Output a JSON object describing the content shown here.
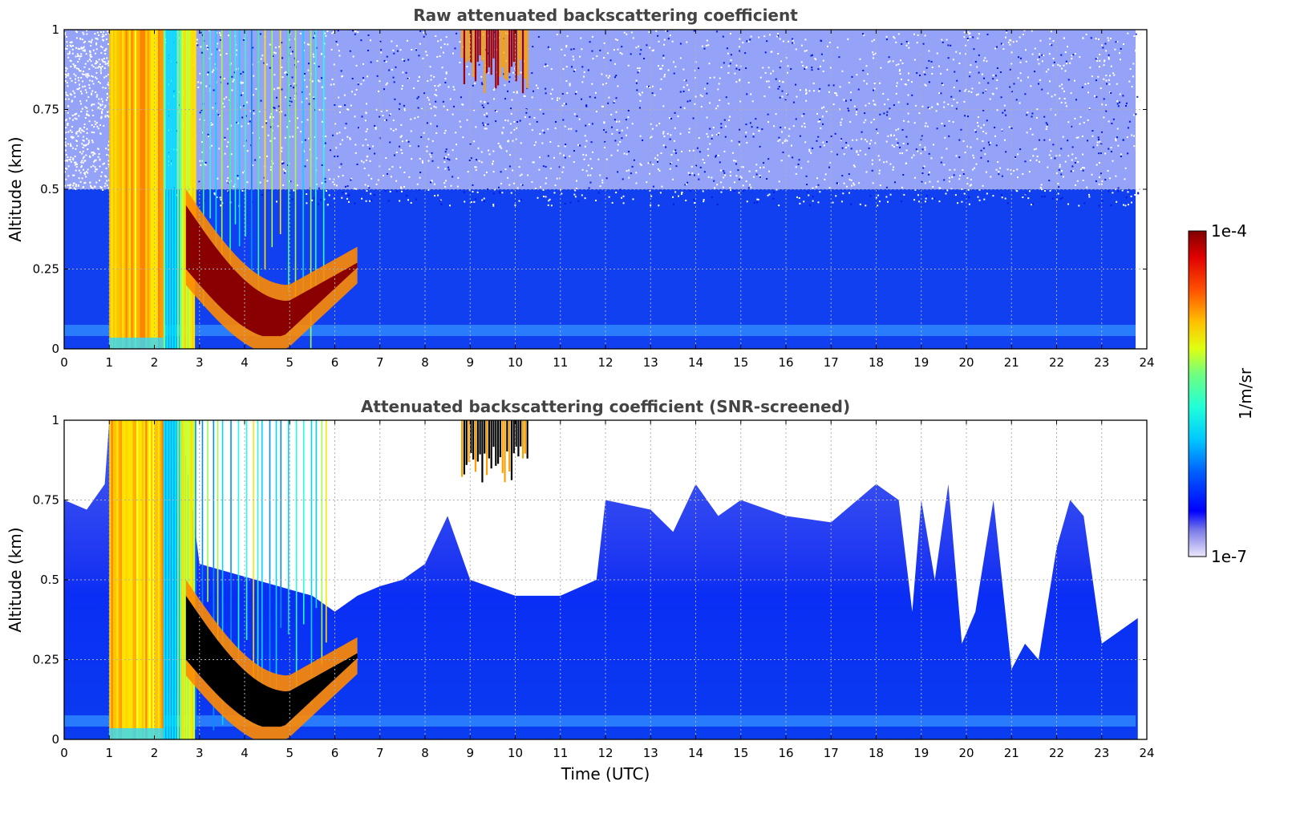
{
  "chart_data": [
    {
      "type": "heatmap",
      "title": "Raw attenuated backscattering coefficient",
      "xlabel": "",
      "ylabel": "Altitude (km)",
      "xlim": [
        0,
        24
      ],
      "ylim": [
        0,
        1
      ],
      "x_ticks": [
        "0",
        "1",
        "2",
        "3",
        "4",
        "5",
        "6",
        "7",
        "8",
        "9",
        "10",
        "11",
        "12",
        "13",
        "14",
        "15",
        "16",
        "17",
        "18",
        "19",
        "20",
        "21",
        "22",
        "23",
        "24"
      ],
      "y_ticks": [
        "0",
        "0.25",
        "0.5",
        "0.75",
        "1"
      ],
      "grid": true,
      "color_scale": "jet, logarithmic",
      "data_end_hour": 23.8,
      "features": [
        {
          "kind": "high-backscatter vertical bands (full column)",
          "x_range": [
            1.0,
            2.2
          ],
          "level": "~1e-5 (yellow/orange)"
        },
        {
          "kind": "high-backscatter vertical bands",
          "x_range": [
            2.6,
            2.8
          ],
          "level": "~5e-6 (yellow)"
        },
        {
          "kind": "intermittent streaks",
          "x_range": [
            2.8,
            5.8
          ]
        },
        {
          "kind": "dense layer (dark red)",
          "x_range": [
            2.7,
            6.5
          ],
          "altitude_km": [
            0.05,
            0.45
          ],
          "level": "~1e-4"
        },
        {
          "kind": "elevated cloud (dark red)",
          "x_range": [
            8.8,
            10.3
          ],
          "altitude_km": [
            0.8,
            1.0
          ]
        },
        {
          "kind": "noisy background",
          "x_range": [
            6,
            23.8
          ],
          "altitude_km": [
            0.0,
            1.0
          ],
          "level": "~1e-7 to 1e-6 (blue)"
        }
      ]
    },
    {
      "type": "heatmap",
      "title": "Attenuated backscattering coefficient (SNR-screened)",
      "xlabel": "Time (UTC)",
      "ylabel": "Altitude (km)",
      "xlim": [
        0,
        24
      ],
      "ylim": [
        0,
        1
      ],
      "x_ticks": [
        "0",
        "1",
        "2",
        "3",
        "4",
        "5",
        "6",
        "7",
        "8",
        "9",
        "10",
        "11",
        "12",
        "13",
        "14",
        "15",
        "16",
        "17",
        "18",
        "19",
        "20",
        "21",
        "22",
        "23",
        "24"
      ],
      "y_ticks": [
        "0",
        "0.25",
        "0.5",
        "0.75",
        "1"
      ],
      "grid": true,
      "color_scale": "jet, logarithmic",
      "data_end_hour": 23.8,
      "valid_data_top_km": {
        "x": [
          0.0,
          0.5,
          0.9,
          1.0,
          2.2,
          2.6,
          3.0,
          5.5,
          6.0,
          6.5,
          7.0,
          7.5,
          8.0,
          8.5,
          9.0,
          10.0,
          11.0,
          11.8,
          12.0,
          13.0,
          13.5,
          14.0,
          14.5,
          15.0,
          16.0,
          17.0,
          18.0,
          18.5,
          18.8,
          19.0,
          19.3,
          19.6,
          19.9,
          20.2,
          20.6,
          21.0,
          21.3,
          21.6,
          22.0,
          22.3,
          22.6,
          22.8,
          23.0,
          23.5,
          23.8
        ],
        "top": [
          0.75,
          0.72,
          0.8,
          1.0,
          1.0,
          1.0,
          0.55,
          0.45,
          0.4,
          0.45,
          0.48,
          0.5,
          0.55,
          0.7,
          0.5,
          0.45,
          0.45,
          0.5,
          0.75,
          0.72,
          0.65,
          0.8,
          0.7,
          0.75,
          0.7,
          0.68,
          0.8,
          0.75,
          0.4,
          0.75,
          0.5,
          0.8,
          0.3,
          0.4,
          0.75,
          0.22,
          0.3,
          0.25,
          0.6,
          0.75,
          0.7,
          0.5,
          0.3,
          0.35,
          0.38
        ]
      },
      "features": [
        {
          "kind": "high-backscatter vertical bands (full column)",
          "x_range": [
            1.0,
            2.2
          ]
        },
        {
          "kind": "saturated layer (black)",
          "x_range": [
            2.7,
            6.5
          ],
          "altitude_km": [
            0.05,
            0.45
          ]
        },
        {
          "kind": "elevated cloud",
          "x_range": [
            8.8,
            10.3
          ],
          "altitude_km": [
            0.75,
            1.0
          ]
        }
      ]
    }
  ],
  "colorbar": {
    "max_label": "1e-4",
    "min_label": "1e-7",
    "unit_label": "1/m/sr"
  }
}
